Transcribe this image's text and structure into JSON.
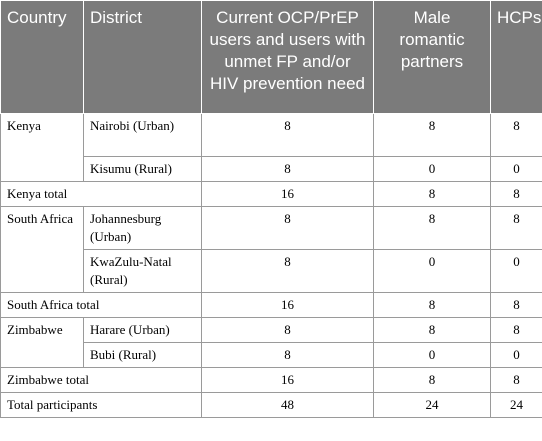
{
  "headers": [
    "Country",
    "District",
    "Current OCP/PrEP users and users with unmet FP and/or HIV prevention need",
    "Male romantic partners",
    "HCPs"
  ],
  "rows": [
    {
      "country": "Kenya",
      "district": "Nairobi (Urban)",
      "users": "8",
      "male": "8",
      "hcps": "8"
    },
    {
      "district": "Kisumu (Rural)",
      "users": "8",
      "male": "0",
      "hcps": "0"
    },
    {
      "total_label": "Kenya total",
      "users": "16",
      "male": "8",
      "hcps": "8"
    },
    {
      "country": "South Africa",
      "district": "Johannesburg (Urban)",
      "users": "8",
      "male": "8",
      "hcps": "8"
    },
    {
      "district": "KwaZulu-Natal (Rural)",
      "users": "8",
      "male": "0",
      "hcps": "0"
    },
    {
      "total_label": "South Africa total",
      "users": "16",
      "male": "8",
      "hcps": "8"
    },
    {
      "country": "Zimbabwe",
      "district": "Harare (Urban)",
      "users": "8",
      "male": "8",
      "hcps": "8"
    },
    {
      "district": "Bubi (Rural)",
      "users": "8",
      "male": "0",
      "hcps": "0"
    },
    {
      "total_label": "Zimbabwe total",
      "users": "16",
      "male": "8",
      "hcps": "8"
    },
    {
      "total_label": "Total participants",
      "users": "48",
      "male": "24",
      "hcps": "24"
    }
  ]
}
